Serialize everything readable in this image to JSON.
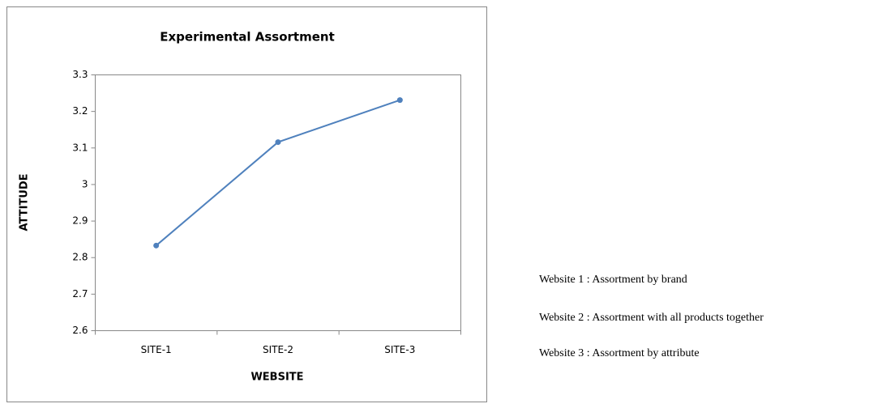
{
  "chart_data": {
    "type": "line",
    "title": "Experimental Assortment",
    "x_label": "WEBSITE",
    "y_label": "ATTITUDE",
    "categories": [
      "SITE-1",
      "SITE-2",
      "SITE-3"
    ],
    "series": [
      {
        "name": "ATTITUDE",
        "color": "#4f81bd",
        "values": [
          2.833,
          3.116,
          3.231
        ]
      }
    ],
    "ylim": [
      2.6,
      3.3
    ],
    "yticks": [
      2.6,
      2.7,
      2.8,
      2.9,
      3,
      3.1,
      3.2,
      3.3
    ],
    "grid": false
  },
  "notes": [
    "Website 1 : Assortment by brand",
    "Website 2 : Assortment with all products together",
    "Website 3 : Assortment by attribute"
  ]
}
